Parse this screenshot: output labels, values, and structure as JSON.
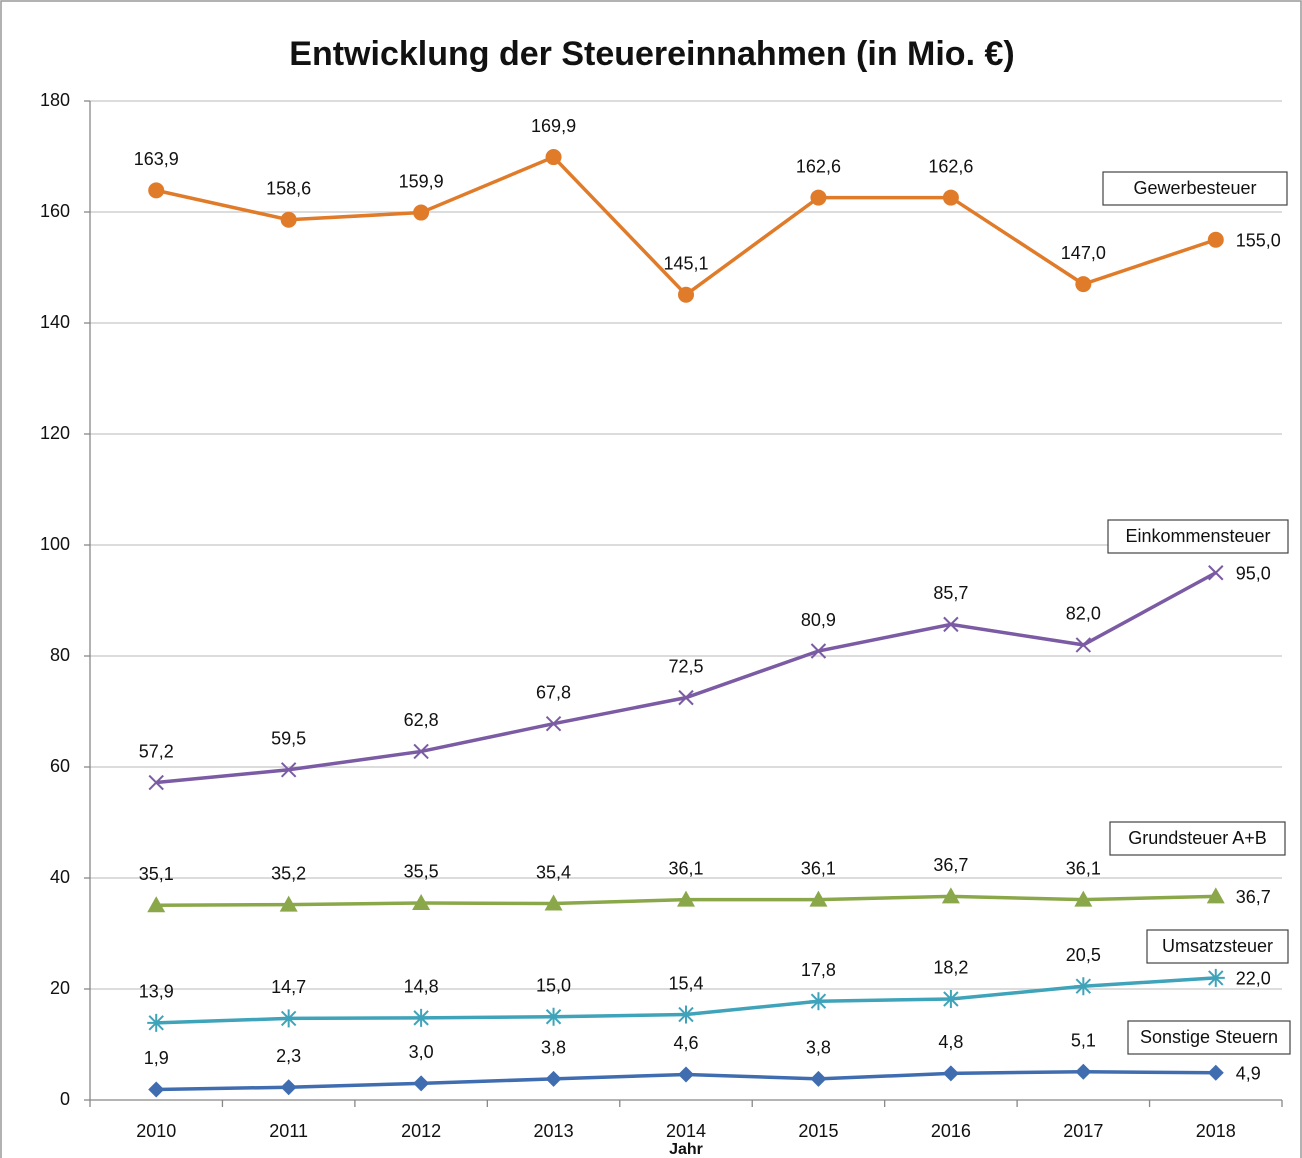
{
  "chart_data": {
    "type": "line",
    "title": "Entwicklung der Steuereinnahmen (in Mio. €)",
    "x_label": "Jahr",
    "categories": [
      "2010",
      "2011",
      "2012",
      "2013",
      "2014",
      "2015",
      "2016",
      "2017",
      "2018"
    ],
    "ylim": [
      0,
      180
    ],
    "yticks": [
      0,
      20,
      40,
      60,
      80,
      100,
      120,
      140,
      160,
      180
    ],
    "grid": true,
    "series": [
      {
        "name": "Gewerbesteuer",
        "color": "#e07b2a",
        "marker": "circle",
        "values": [
          163.9,
          158.6,
          159.9,
          169.9,
          145.1,
          162.6,
          162.6,
          147.0,
          155.0
        ],
        "value_labels": [
          "163,9",
          "158,6",
          "159,9",
          "169,9",
          "145,1",
          "162,6",
          "162,6",
          "147,0",
          "155,0"
        ]
      },
      {
        "name": "Einkommensteuer",
        "color": "#7b5ba3",
        "marker": "x",
        "values": [
          57.2,
          59.5,
          62.8,
          67.8,
          72.5,
          80.9,
          85.7,
          82.0,
          95.0
        ],
        "value_labels": [
          "57,2",
          "59,5",
          "62,8",
          "67,8",
          "72,5",
          "80,9",
          "85,7",
          "82,0",
          "95,0"
        ]
      },
      {
        "name": "Grundsteuer A+B",
        "color": "#8aa84a",
        "marker": "triangle",
        "values": [
          35.1,
          35.2,
          35.5,
          35.4,
          36.1,
          36.1,
          36.7,
          36.1,
          36.7
        ],
        "value_labels": [
          "35,1",
          "35,2",
          "35,5",
          "35,4",
          "36,1",
          "36,1",
          "36,7",
          "36,1",
          "36,7"
        ]
      },
      {
        "name": "Umsatzsteuer",
        "color": "#3fa3ba",
        "marker": "asterisk",
        "values": [
          13.9,
          14.7,
          14.8,
          15.0,
          15.4,
          17.8,
          18.2,
          20.5,
          22.0
        ],
        "value_labels": [
          "13,9",
          "14,7",
          "14,8",
          "15,0",
          "15,4",
          "17,8",
          "18,2",
          "20,5",
          "22,0"
        ]
      },
      {
        "name": "Sonstige Steuern",
        "color": "#3f6db0",
        "marker": "diamond",
        "values": [
          1.9,
          2.3,
          3.0,
          3.8,
          4.6,
          3.8,
          4.8,
          5.1,
          4.9
        ],
        "value_labels": [
          "1,9",
          "2,3",
          "3,0",
          "3,8",
          "4,6",
          "3,8",
          "4,8",
          "5,1",
          "4,9"
        ]
      }
    ]
  }
}
